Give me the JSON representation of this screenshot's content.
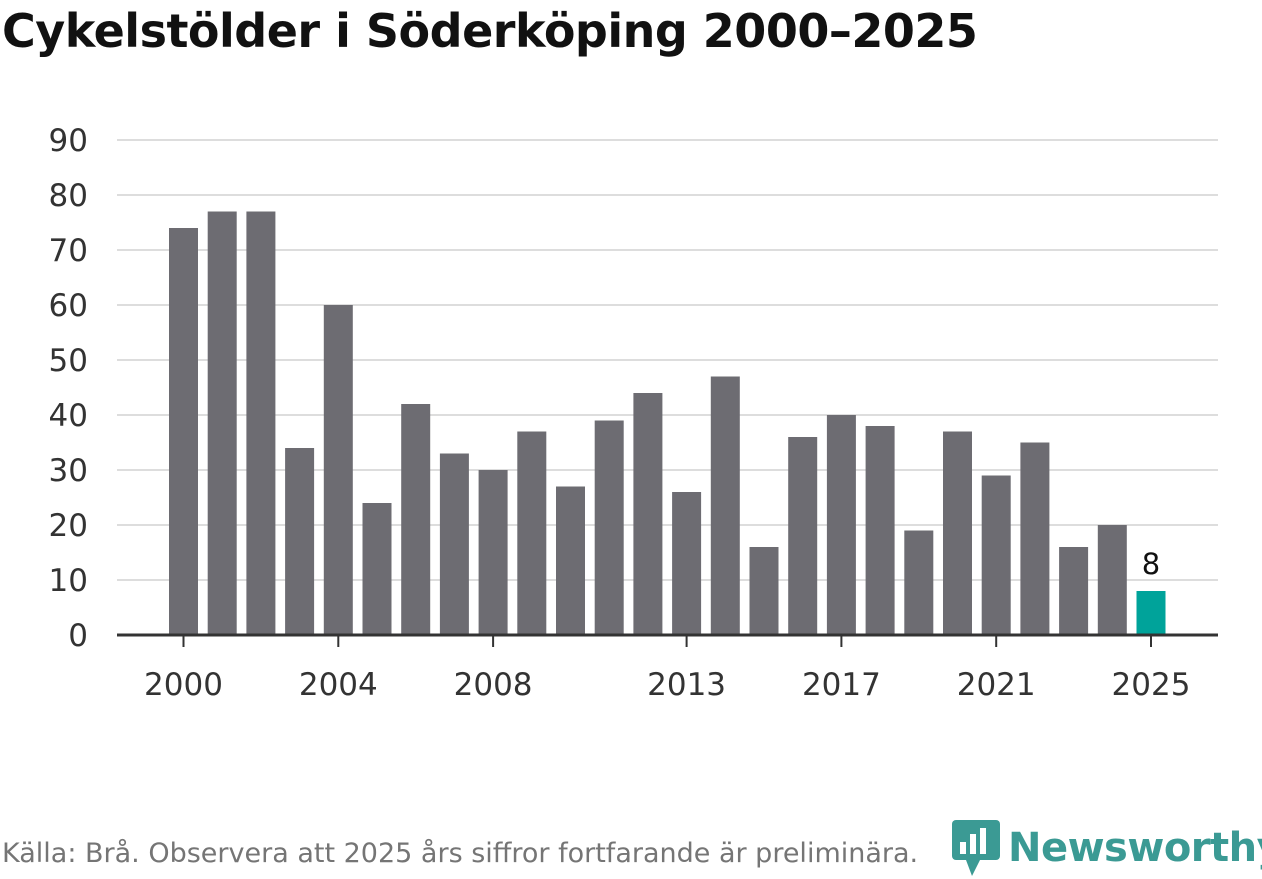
{
  "title": "Cykelstölder i Söderköping 2000–2025",
  "source": "Källa: Brå. Observera att 2025 års siffror fortfarande är preliminära.",
  "brand": "Newsworthy",
  "colors": {
    "bar": "#6d6c72",
    "highlight": "#00a39a",
    "grid": "#dddddd",
    "axis": "#333333",
    "brand": "#3b9a94"
  },
  "chart_data": {
    "type": "bar",
    "title": "Cykelstölder i Söderköping 2000–2025",
    "xlabel": "",
    "ylabel": "",
    "ylim": [
      0,
      90
    ],
    "yticks": [
      0,
      10,
      20,
      30,
      40,
      50,
      60,
      70,
      80,
      90
    ],
    "x_tick_labels": [
      "2000",
      "2004",
      "2008",
      "2013",
      "2017",
      "2021",
      "2025"
    ],
    "categories": [
      "2000",
      "2001",
      "2002",
      "2003",
      "2004",
      "2005",
      "2006",
      "2007",
      "2008",
      "2009",
      "2010",
      "2011",
      "2012",
      "2013",
      "2014",
      "2015",
      "2016",
      "2017",
      "2018",
      "2019",
      "2020",
      "2021",
      "2022",
      "2023",
      "2024",
      "2025"
    ],
    "values": [
      74,
      77,
      77,
      34,
      60,
      24,
      42,
      33,
      30,
      37,
      27,
      39,
      44,
      26,
      47,
      16,
      36,
      40,
      38,
      19,
      37,
      29,
      35,
      16,
      20,
      8
    ],
    "highlight_category": "2025",
    "data_labels": [
      {
        "category": "2025",
        "text": "8"
      }
    ]
  }
}
